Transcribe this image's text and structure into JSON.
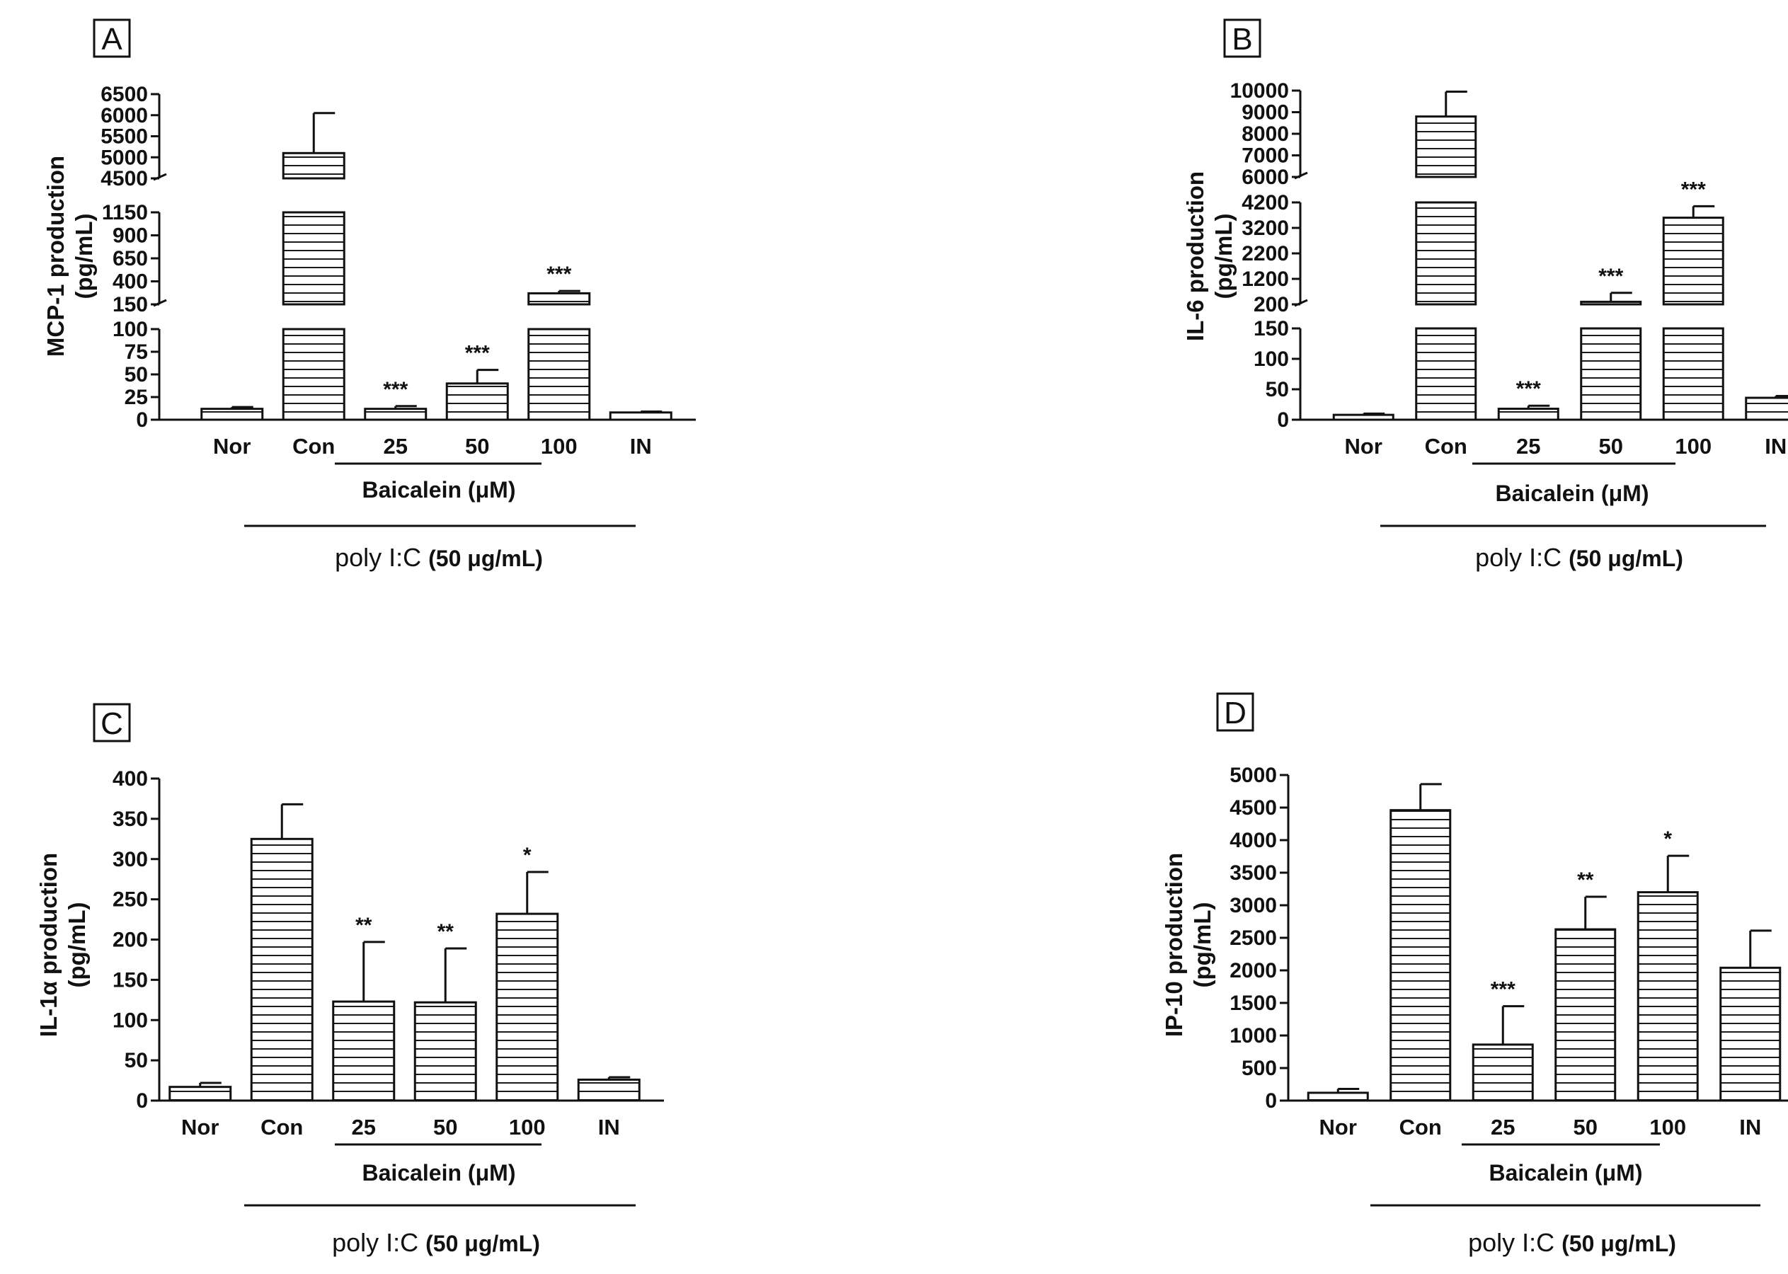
{
  "panels": [
    {
      "letter": "A",
      "type": "bar",
      "ylabel_line1": "MCP-1 production",
      "ylabel_line2": "(pg/mL)",
      "segments": [
        {
          "range": [
            0,
            100
          ],
          "ticks": [
            0,
            25,
            50,
            75,
            100
          ]
        },
        {
          "range": [
            150,
            1150
          ],
          "ticks": [
            150,
            400,
            650,
            900,
            1150
          ]
        },
        {
          "range": [
            4500,
            6500
          ],
          "ticks": [
            4500,
            5000,
            5500,
            6000,
            6500
          ]
        }
      ],
      "categories": [
        "Nor",
        "Con",
        "25",
        "50",
        "100",
        "IN"
      ],
      "values": [
        12,
        5100,
        12,
        40,
        270,
        8
      ],
      "errors": [
        2,
        950,
        3,
        15,
        25,
        1
      ],
      "significance": [
        "",
        "",
        "***",
        "***",
        "***",
        ""
      ],
      "group_label": "Baicalein (μM)",
      "treatment_label": "poly I:C",
      "treatment_conc": "(50 μg/mL)"
    },
    {
      "letter": "B",
      "type": "bar",
      "ylabel_line1": "IL-6 production",
      "ylabel_line2": "(pg/mL)",
      "segments": [
        {
          "range": [
            0,
            150
          ],
          "ticks": [
            0,
            50,
            100,
            150
          ]
        },
        {
          "range": [
            200,
            4200
          ],
          "ticks": [
            200,
            1200,
            2200,
            3200,
            4200
          ]
        },
        {
          "range": [
            6000,
            10000
          ],
          "ticks": [
            6000,
            7000,
            8000,
            9000,
            10000
          ]
        }
      ],
      "categories": [
        "Nor",
        "Con",
        "25",
        "50",
        "100",
        "IN"
      ],
      "values": [
        8,
        8800,
        18,
        300,
        3600,
        36
      ],
      "errors": [
        2,
        1150,
        5,
        350,
        450,
        3
      ],
      "significance": [
        "",
        "",
        "***",
        "***",
        "***",
        ""
      ],
      "group_label": "Baicalein (μM)",
      "treatment_label": "poly I:C",
      "treatment_conc": "(50 μg/mL)"
    },
    {
      "letter": "C",
      "type": "bar",
      "ylabel_line1": "IL-1α production",
      "ylabel_line2": "(pg/mL)",
      "ylim": [
        0,
        400
      ],
      "ticks": [
        0,
        50,
        100,
        150,
        200,
        250,
        300,
        350,
        400
      ],
      "categories": [
        "Nor",
        "Con",
        "25",
        "50",
        "100",
        "IN"
      ],
      "values": [
        17,
        325,
        123,
        122,
        232,
        26
      ],
      "errors": [
        5,
        43,
        74,
        67,
        52,
        3
      ],
      "significance": [
        "",
        "",
        "**",
        "**",
        "*",
        ""
      ],
      "group_label": "Baicalein (μM)",
      "treatment_label": "poly I:C",
      "treatment_conc": "(50 μg/mL)"
    },
    {
      "letter": "D",
      "type": "bar",
      "ylabel_line1": "IP-10 production",
      "ylabel_line2": "(pg/mL)",
      "ylim": [
        0,
        5000
      ],
      "ticks": [
        0,
        500,
        1000,
        1500,
        2000,
        2500,
        3000,
        3500,
        4000,
        4500,
        5000
      ],
      "categories": [
        "Nor",
        "Con",
        "25",
        "50",
        "100",
        "IN"
      ],
      "values": [
        120,
        4460,
        860,
        2630,
        3200,
        2040
      ],
      "errors": [
        60,
        400,
        590,
        500,
        560,
        570
      ],
      "significance": [
        "",
        "",
        "***",
        "**",
        "*",
        ""
      ],
      "group_label": "Baicalein (μM)",
      "treatment_label": "poly I:C",
      "treatment_conc": "(50 μg/mL)"
    }
  ]
}
